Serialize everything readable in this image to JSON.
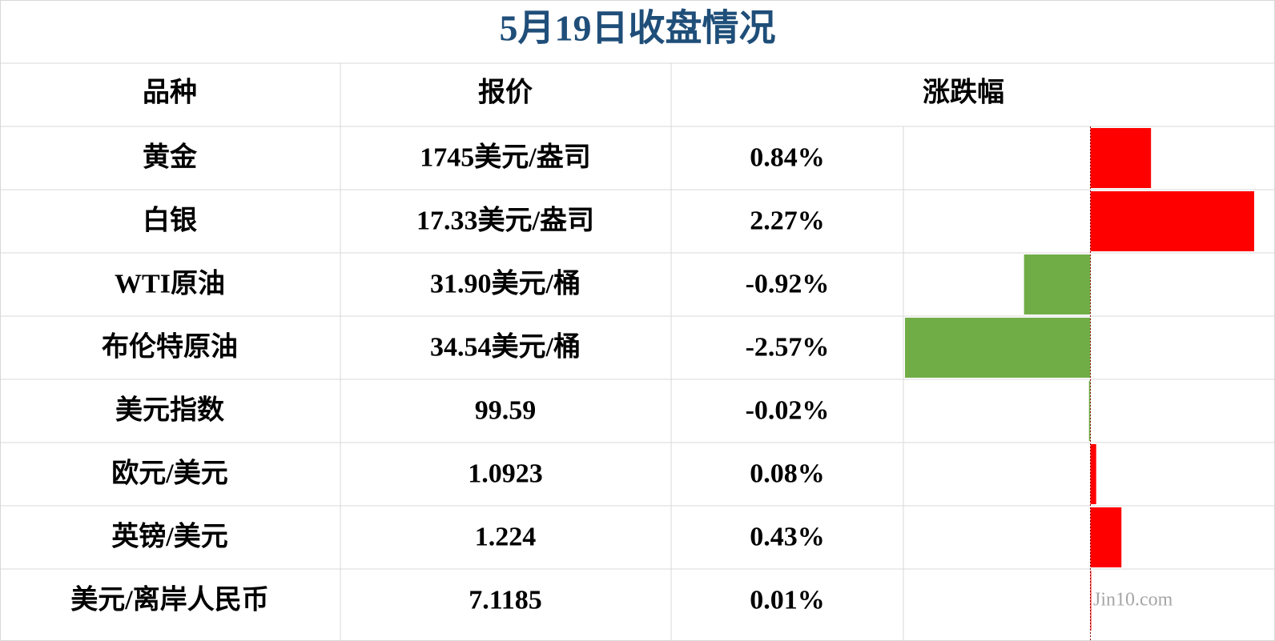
{
  "header": {
    "title": "5月19日收盘情况"
  },
  "table": {
    "columns": [
      "品种",
      "报价",
      "涨跌幅"
    ],
    "rows": [
      {
        "name": "黄金",
        "price": "1745美元/盎司",
        "change": 0.84,
        "change_label": "0.84%"
      },
      {
        "name": "白银",
        "price": "17.33美元/盎司",
        "change": 2.27,
        "change_label": "2.27%"
      },
      {
        "name": "WTI原油",
        "price": "31.90美元/桶",
        "change": -0.92,
        "change_label": "-0.92%"
      },
      {
        "name": "布伦特原油",
        "price": "34.54美元/桶",
        "change": -2.57,
        "change_label": "-2.57%"
      },
      {
        "name": "美元指数",
        "price": "99.59",
        "change": -0.02,
        "change_label": "-0.02%"
      },
      {
        "name": "欧元/美元",
        "price": "1.0923",
        "change": 0.08,
        "change_label": "0.08%"
      },
      {
        "name": "英镑/美元",
        "price": "1.224",
        "change": 0.43,
        "change_label": "0.43%"
      },
      {
        "name": "美元/离岸人民币",
        "price": "7.1185",
        "change": 0.01,
        "change_label": "0.01%"
      }
    ],
    "positive_color": "#ff0000",
    "negative_color": "#70ad47"
  },
  "watermark": "Jin10.com"
}
